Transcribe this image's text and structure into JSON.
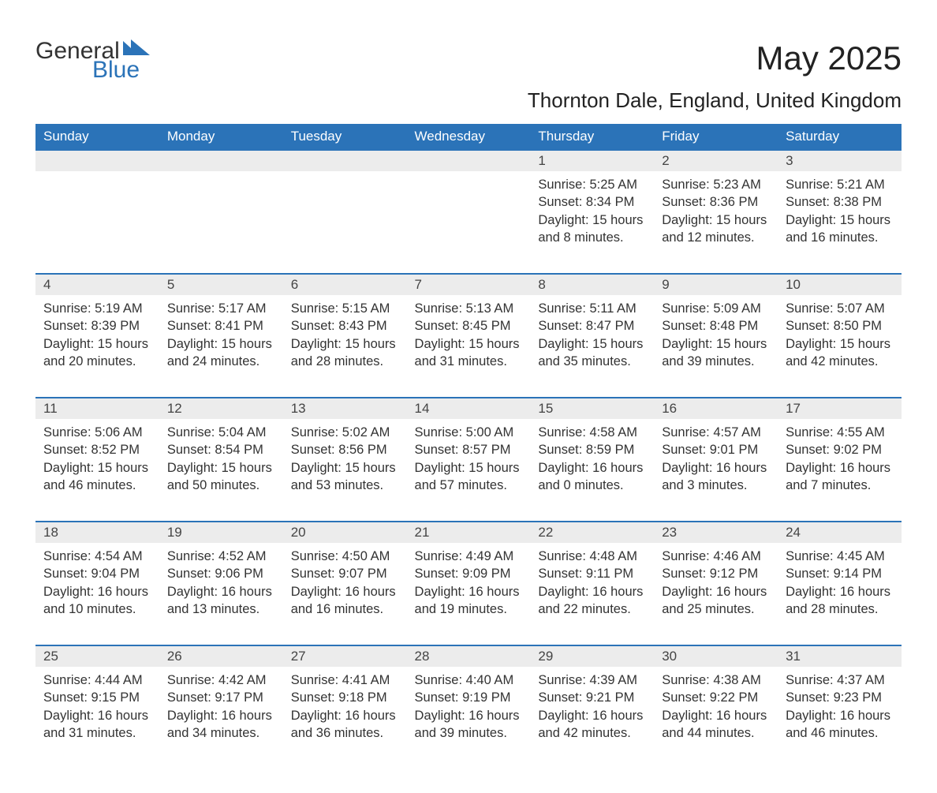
{
  "logo": {
    "text_a": "General",
    "text_b": "Blue"
  },
  "title": "May 2025",
  "location": "Thornton Dale, England, United Kingdom",
  "colors": {
    "brand_blue": "#2b73b8",
    "header_text": "#ffffff",
    "daynum_bg": "#ececec",
    "body_text": "#333333",
    "page_bg": "#ffffff"
  },
  "typography": {
    "title_fontsize": 42,
    "location_fontsize": 26,
    "header_fontsize": 17,
    "cell_fontsize": 16.5,
    "logo_fontsize": 30
  },
  "layout": {
    "columns": 7,
    "rows": 5
  },
  "day_headers": [
    "Sunday",
    "Monday",
    "Tuesday",
    "Wednesday",
    "Thursday",
    "Friday",
    "Saturday"
  ],
  "weeks": [
    [
      null,
      null,
      null,
      null,
      {
        "n": "1",
        "sr": "5:25 AM",
        "ss": "8:34 PM",
        "dh": "15",
        "dm": "8"
      },
      {
        "n": "2",
        "sr": "5:23 AM",
        "ss": "8:36 PM",
        "dh": "15",
        "dm": "12"
      },
      {
        "n": "3",
        "sr": "5:21 AM",
        "ss": "8:38 PM",
        "dh": "15",
        "dm": "16"
      }
    ],
    [
      {
        "n": "4",
        "sr": "5:19 AM",
        "ss": "8:39 PM",
        "dh": "15",
        "dm": "20"
      },
      {
        "n": "5",
        "sr": "5:17 AM",
        "ss": "8:41 PM",
        "dh": "15",
        "dm": "24"
      },
      {
        "n": "6",
        "sr": "5:15 AM",
        "ss": "8:43 PM",
        "dh": "15",
        "dm": "28"
      },
      {
        "n": "7",
        "sr": "5:13 AM",
        "ss": "8:45 PM",
        "dh": "15",
        "dm": "31"
      },
      {
        "n": "8",
        "sr": "5:11 AM",
        "ss": "8:47 PM",
        "dh": "15",
        "dm": "35"
      },
      {
        "n": "9",
        "sr": "5:09 AM",
        "ss": "8:48 PM",
        "dh": "15",
        "dm": "39"
      },
      {
        "n": "10",
        "sr": "5:07 AM",
        "ss": "8:50 PM",
        "dh": "15",
        "dm": "42"
      }
    ],
    [
      {
        "n": "11",
        "sr": "5:06 AM",
        "ss": "8:52 PM",
        "dh": "15",
        "dm": "46"
      },
      {
        "n": "12",
        "sr": "5:04 AM",
        "ss": "8:54 PM",
        "dh": "15",
        "dm": "50"
      },
      {
        "n": "13",
        "sr": "5:02 AM",
        "ss": "8:56 PM",
        "dh": "15",
        "dm": "53"
      },
      {
        "n": "14",
        "sr": "5:00 AM",
        "ss": "8:57 PM",
        "dh": "15",
        "dm": "57"
      },
      {
        "n": "15",
        "sr": "4:58 AM",
        "ss": "8:59 PM",
        "dh": "16",
        "dm": "0"
      },
      {
        "n": "16",
        "sr": "4:57 AM",
        "ss": "9:01 PM",
        "dh": "16",
        "dm": "3"
      },
      {
        "n": "17",
        "sr": "4:55 AM",
        "ss": "9:02 PM",
        "dh": "16",
        "dm": "7"
      }
    ],
    [
      {
        "n": "18",
        "sr": "4:54 AM",
        "ss": "9:04 PM",
        "dh": "16",
        "dm": "10"
      },
      {
        "n": "19",
        "sr": "4:52 AM",
        "ss": "9:06 PM",
        "dh": "16",
        "dm": "13"
      },
      {
        "n": "20",
        "sr": "4:50 AM",
        "ss": "9:07 PM",
        "dh": "16",
        "dm": "16"
      },
      {
        "n": "21",
        "sr": "4:49 AM",
        "ss": "9:09 PM",
        "dh": "16",
        "dm": "19"
      },
      {
        "n": "22",
        "sr": "4:48 AM",
        "ss": "9:11 PM",
        "dh": "16",
        "dm": "22"
      },
      {
        "n": "23",
        "sr": "4:46 AM",
        "ss": "9:12 PM",
        "dh": "16",
        "dm": "25"
      },
      {
        "n": "24",
        "sr": "4:45 AM",
        "ss": "9:14 PM",
        "dh": "16",
        "dm": "28"
      }
    ],
    [
      {
        "n": "25",
        "sr": "4:44 AM",
        "ss": "9:15 PM",
        "dh": "16",
        "dm": "31"
      },
      {
        "n": "26",
        "sr": "4:42 AM",
        "ss": "9:17 PM",
        "dh": "16",
        "dm": "34"
      },
      {
        "n": "27",
        "sr": "4:41 AM",
        "ss": "9:18 PM",
        "dh": "16",
        "dm": "36"
      },
      {
        "n": "28",
        "sr": "4:40 AM",
        "ss": "9:19 PM",
        "dh": "16",
        "dm": "39"
      },
      {
        "n": "29",
        "sr": "4:39 AM",
        "ss": "9:21 PM",
        "dh": "16",
        "dm": "42"
      },
      {
        "n": "30",
        "sr": "4:38 AM",
        "ss": "9:22 PM",
        "dh": "16",
        "dm": "44"
      },
      {
        "n": "31",
        "sr": "4:37 AM",
        "ss": "9:23 PM",
        "dh": "16",
        "dm": "46"
      }
    ]
  ],
  "labels": {
    "sunrise": "Sunrise:",
    "sunset": "Sunset:",
    "daylight": "Daylight:",
    "hours": "hours",
    "and": "and",
    "minutes": "minutes."
  }
}
